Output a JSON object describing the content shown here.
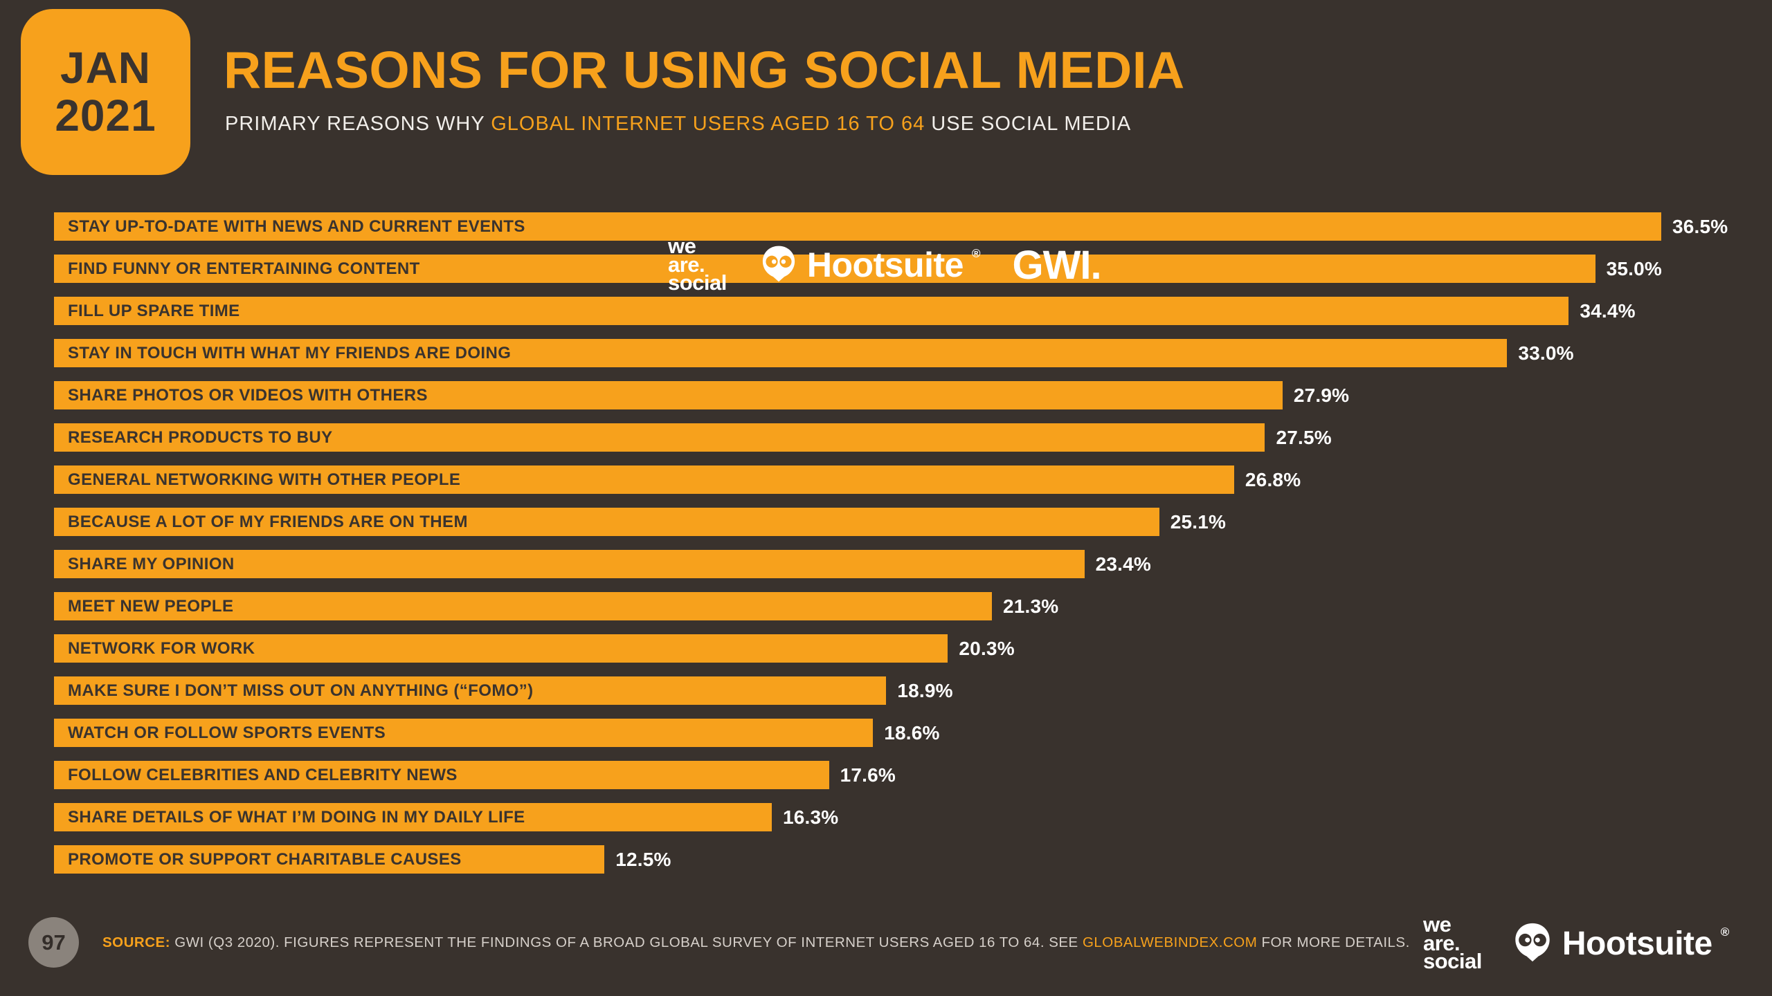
{
  "meta": {
    "date_month": "JAN",
    "date_year": "2021",
    "page_number": "97"
  },
  "header": {
    "subtitle_prefix": "PRIMARY REASONS WHY ",
    "subtitle_highlight": "GLOBAL INTERNET USERS AGED 16 TO 64",
    "subtitle_suffix": " USE SOCIAL MEDIA"
  },
  "chart_data": {
    "type": "bar",
    "orientation": "horizontal",
    "title": "REASONS FOR USING SOCIAL MEDIA",
    "subtitle": "PRIMARY REASONS WHY GLOBAL INTERNET USERS AGED 16 TO 64 USE SOCIAL MEDIA",
    "categories": [
      "STAY UP-TO-DATE WITH NEWS AND CURRENT EVENTS",
      "FIND FUNNY OR ENTERTAINING CONTENT",
      "FILL UP SPARE TIME",
      "STAY IN TOUCH WITH WHAT MY FRIENDS ARE DOING",
      "SHARE PHOTOS OR VIDEOS WITH OTHERS",
      "RESEARCH PRODUCTS TO BUY",
      "GENERAL NETWORKING WITH OTHER PEOPLE",
      "BECAUSE A LOT OF MY FRIENDS ARE ON THEM",
      "SHARE MY OPINION",
      "MEET NEW PEOPLE",
      "NETWORK FOR WORK",
      "MAKE SURE I DON’T MISS OUT ON ANYTHING (“FOMO”)",
      "WATCH OR FOLLOW SPORTS EVENTS",
      "FOLLOW CELEBRITIES AND CELEBRITY NEWS",
      "SHARE DETAILS OF WHAT I’M DOING IN MY DAILY LIFE",
      "PROMOTE OR SUPPORT CHARITABLE CAUSES"
    ],
    "values": [
      36.5,
      35.0,
      34.4,
      33.0,
      27.9,
      27.5,
      26.8,
      25.1,
      23.4,
      21.3,
      20.3,
      18.9,
      18.6,
      17.6,
      16.3,
      12.5
    ],
    "value_labels": [
      "36.5%",
      "35.0%",
      "34.4%",
      "33.0%",
      "27.9%",
      "27.5%",
      "26.8%",
      "25.1%",
      "23.4%",
      "21.3%",
      "20.3%",
      "18.9%",
      "18.6%",
      "17.6%",
      "16.3%",
      "12.5%"
    ],
    "unit": "%",
    "xlim": [
      0,
      36.5
    ],
    "grid": false,
    "legend": false,
    "bar_color": "#f7a11c",
    "bar_label_color": "#3a332e",
    "value_label_color": "#ffffff"
  },
  "watermark": {
    "wearesocial_lines": [
      "we",
      "are.",
      "social"
    ],
    "hootsuite": "Hootsuite",
    "registered": "®",
    "gwi": "GWI."
  },
  "footer": {
    "source_label": "SOURCE:",
    "source_text_1": " GWI (Q3 2020). FIGURES REPRESENT THE FINDINGS OF A BROAD GLOBAL SURVEY OF INTERNET USERS AGED 16 TO 64. SEE ",
    "source_link": "GLOBALWEBINDEX.COM",
    "source_text_2": " FOR MORE DETAILS."
  },
  "colors": {
    "background": "#39322d",
    "accent": "#f7a11c",
    "bar_label": "#3a332e",
    "text_light": "#f2efeb"
  }
}
